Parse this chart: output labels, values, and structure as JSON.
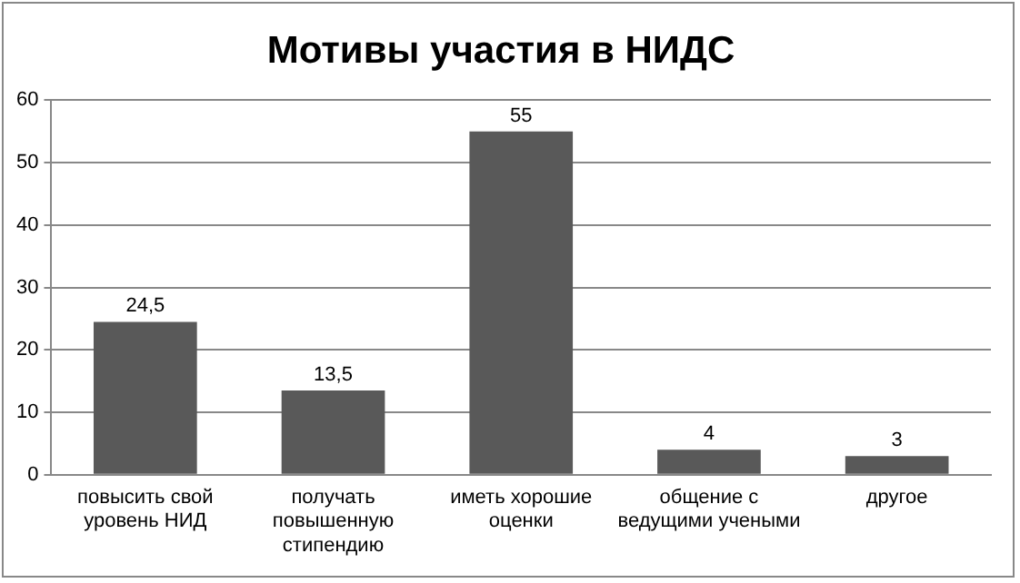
{
  "chart_data": {
    "type": "bar",
    "title": "Мотивы участия в НИДС",
    "categories": [
      "повысить свой уровень НИД",
      "получать повышенную стипендию",
      "иметь хорошие оценки",
      "общение с ведущими учеными",
      "другое"
    ],
    "values": [
      24.5,
      13.5,
      55,
      4,
      3
    ],
    "value_labels": [
      "24,5",
      "13,5",
      "55",
      "4",
      "3"
    ],
    "color": "#595959",
    "ylim": [
      0,
      60
    ],
    "yticks": [
      0,
      10,
      20,
      30,
      40,
      50,
      60
    ],
    "grid": "y",
    "legend": false
  }
}
